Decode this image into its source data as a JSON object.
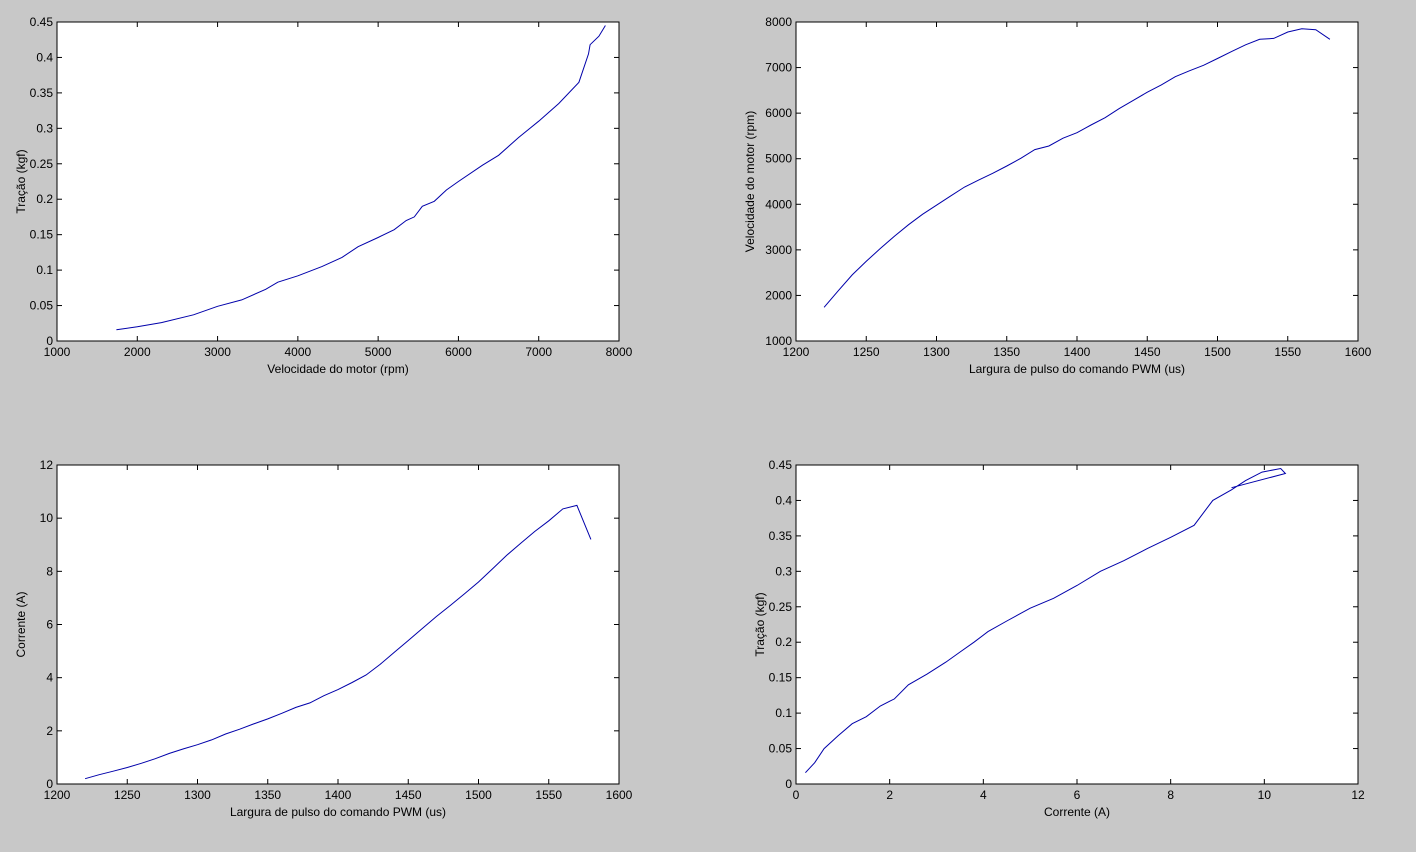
{
  "chart_data": [
    {
      "type": "line",
      "xlabel": "Velocidade do motor (rpm)",
      "ylabel": "Tração (kgf)",
      "color": "#0000aa",
      "x": [
        1740,
        2000,
        2300,
        2700,
        3000,
        3300,
        3600,
        3750,
        4000,
        4300,
        4550,
        4750,
        5000,
        5200,
        5350,
        5450,
        5550,
        5700,
        5850,
        6000,
        6300,
        6500,
        6750,
        7000,
        7250,
        7500,
        7620,
        7640,
        7750,
        7830
      ],
      "values": [
        0.016,
        0.02,
        0.026,
        0.037,
        0.049,
        0.058,
        0.073,
        0.083,
        0.092,
        0.105,
        0.118,
        0.133,
        0.146,
        0.157,
        0.17,
        0.175,
        0.19,
        0.197,
        0.213,
        0.225,
        0.248,
        0.262,
        0.287,
        0.31,
        0.335,
        0.365,
        0.405,
        0.418,
        0.43,
        0.445
      ],
      "xlim": [
        1000,
        8000
      ],
      "xticks": [
        1000,
        2000,
        3000,
        4000,
        5000,
        6000,
        7000,
        8000
      ],
      "ylim": [
        0,
        0.45
      ],
      "yticks": [
        0,
        0.05,
        0.1,
        0.15,
        0.2,
        0.25,
        0.3,
        0.35,
        0.4,
        0.45
      ]
    },
    {
      "type": "line",
      "xlabel": "Largura de pulso do comando PWM (us)",
      "ylabel": "Velocidade do motor (rpm)",
      "color": "#0000aa",
      "x": [
        1220,
        1230,
        1240,
        1250,
        1260,
        1270,
        1280,
        1290,
        1300,
        1310,
        1320,
        1330,
        1340,
        1350,
        1360,
        1370,
        1380,
        1390,
        1400,
        1410,
        1420,
        1430,
        1440,
        1450,
        1460,
        1470,
        1480,
        1490,
        1500,
        1510,
        1520,
        1530,
        1540,
        1550,
        1560,
        1570,
        1580
      ],
      "values": [
        1740,
        2100,
        2450,
        2750,
        3030,
        3300,
        3550,
        3780,
        3980,
        4180,
        4380,
        4530,
        4680,
        4840,
        5010,
        5200,
        5280,
        5450,
        5570,
        5740,
        5900,
        6100,
        6280,
        6460,
        6620,
        6800,
        6930,
        7050,
        7200,
        7350,
        7500,
        7620,
        7640,
        7780,
        7850,
        7830,
        7620
      ],
      "xlim": [
        1200,
        1600
      ],
      "xticks": [
        1200,
        1250,
        1300,
        1350,
        1400,
        1450,
        1500,
        1550,
        1600
      ],
      "ylim": [
        1000,
        8000
      ],
      "yticks": [
        1000,
        2000,
        3000,
        4000,
        5000,
        6000,
        7000,
        8000
      ]
    },
    {
      "type": "line",
      "xlabel": "Largura de pulso do comando PWM (us)",
      "ylabel": "Corrente (A)",
      "color": "#0000aa",
      "x": [
        1220,
        1230,
        1240,
        1250,
        1260,
        1270,
        1280,
        1290,
        1300,
        1310,
        1320,
        1330,
        1340,
        1350,
        1360,
        1370,
        1380,
        1390,
        1400,
        1410,
        1420,
        1430,
        1440,
        1450,
        1460,
        1470,
        1480,
        1490,
        1500,
        1510,
        1520,
        1530,
        1540,
        1550,
        1560,
        1570,
        1580
      ],
      "values": [
        0.2,
        0.35,
        0.48,
        0.62,
        0.78,
        0.95,
        1.15,
        1.32,
        1.48,
        1.66,
        1.88,
        2.06,
        2.26,
        2.45,
        2.66,
        2.88,
        3.05,
        3.32,
        3.55,
        3.82,
        4.1,
        4.5,
        4.95,
        5.4,
        5.85,
        6.3,
        6.72,
        7.15,
        7.6,
        8.1,
        8.6,
        9.05,
        9.5,
        9.9,
        10.35,
        10.48,
        9.2
      ],
      "xlim": [
        1200,
        1600
      ],
      "xticks": [
        1200,
        1250,
        1300,
        1350,
        1400,
        1450,
        1500,
        1550,
        1600
      ],
      "ylim": [
        0,
        12
      ],
      "yticks": [
        0,
        2,
        4,
        6,
        8,
        10,
        12
      ]
    },
    {
      "type": "line",
      "xlabel": "Corrente (A)",
      "ylabel": "Tração (kgf)",
      "color": "#0000aa",
      "x": [
        0.2,
        0.4,
        0.6,
        0.9,
        1.2,
        1.5,
        1.8,
        2.1,
        2.4,
        2.8,
        3.2,
        3.5,
        3.8,
        4.1,
        4.5,
        5.0,
        5.5,
        6.0,
        6.5,
        7.0,
        7.5,
        8.0,
        8.5,
        8.9,
        9.3,
        9.6,
        9.95,
        10.35,
        10.45,
        9.3
      ],
      "values": [
        0.016,
        0.03,
        0.05,
        0.068,
        0.085,
        0.095,
        0.11,
        0.12,
        0.14,
        0.155,
        0.172,
        0.186,
        0.2,
        0.215,
        0.23,
        0.248,
        0.262,
        0.28,
        0.3,
        0.315,
        0.332,
        0.348,
        0.365,
        0.4,
        0.415,
        0.428,
        0.44,
        0.445,
        0.438,
        0.418
      ],
      "xlim": [
        0,
        12
      ],
      "xticks": [
        0,
        2,
        4,
        6,
        8,
        10,
        12
      ],
      "ylim": [
        0,
        0.45
      ],
      "yticks": [
        0,
        0.05,
        0.1,
        0.15,
        0.2,
        0.25,
        0.3,
        0.35,
        0.4,
        0.45
      ]
    }
  ]
}
